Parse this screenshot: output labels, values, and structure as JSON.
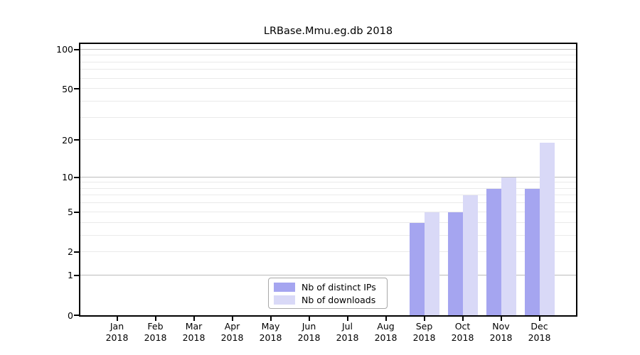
{
  "chart_data": {
    "type": "bar",
    "title": "LRBase.Mmu.eg.db 2018",
    "categories": [
      "Jan",
      "Feb",
      "Mar",
      "Apr",
      "May",
      "Jun",
      "Jul",
      "Aug",
      "Sep",
      "Oct",
      "Nov",
      "Dec"
    ],
    "year_label": "2018",
    "series": [
      {
        "name": "Nb of distinct IPs",
        "color": "#a5a5f0",
        "values": [
          0,
          0,
          0,
          0,
          0,
          0,
          0,
          0,
          4,
          5,
          8,
          8
        ]
      },
      {
        "name": "Nb of downloads",
        "color": "#d9d9f7",
        "values": [
          0,
          0,
          0,
          0,
          0,
          0,
          0,
          0,
          5,
          7,
          10,
          19
        ]
      }
    ],
    "xlabel": "",
    "ylabel": "",
    "yscale": "log1p",
    "ylim": [
      0,
      110
    ],
    "ytick_labels": [
      0,
      1,
      2,
      5,
      10,
      20,
      50,
      100
    ],
    "gridlines_major": [
      1,
      10,
      100
    ],
    "gridlines_minor": [
      2,
      3,
      4,
      5,
      6,
      7,
      8,
      9,
      20,
      30,
      40,
      50,
      60,
      70,
      80,
      90
    ],
    "grid": "on",
    "legend_position": "bottom-center",
    "colors": {
      "axis": "#000000",
      "text": "#000000",
      "grid_major": "#bbbbbb",
      "grid_minor": "#eaeaea",
      "background": "#ffffff"
    }
  }
}
